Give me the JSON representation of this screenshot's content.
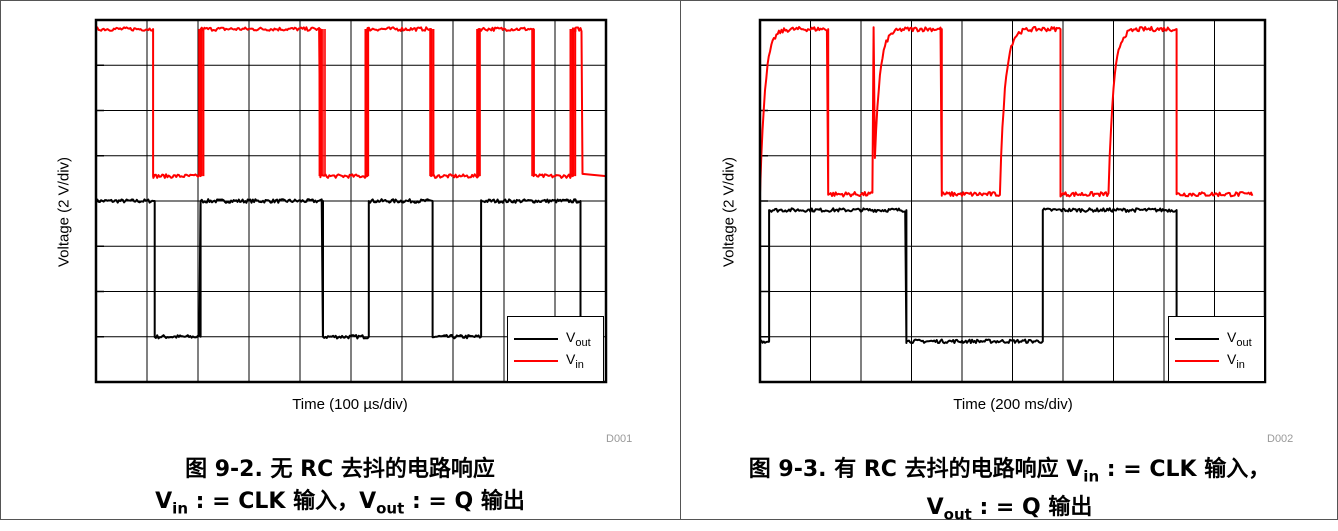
{
  "colors": {
    "vout": "#000000",
    "vin": "#ff0000",
    "grid": "#000000"
  },
  "captions": [
    {
      "line1": "图 9-2. 无 RC 去抖的电路响应",
      "vin_sym": "V",
      "vin_sub": "in",
      "vin_rest": " : = CLK 输入，",
      "vout_sym": "V",
      "vout_sub": "out",
      "vout_rest": " : = Q 输出"
    },
    {
      "line1_pre": "图 9-3. 有 RC 去抖的电路响应 ",
      "vin_sym": "V",
      "vin_sub": "in",
      "vin_rest": " : = CLK 输入，",
      "vout_sym": "V",
      "vout_sub": "out",
      "vout_rest": " : = Q 输出"
    }
  ],
  "chart_data": [
    {
      "type": "line",
      "id": "D001",
      "xlabel": "Time (100 µs/div)",
      "ylabel": "Voltage (2 V/div)",
      "x_divisions": 10,
      "y_divisions": 8,
      "ylim": [
        0,
        8
      ],
      "grid": true,
      "legend": {
        "placement": "bottom-right",
        "entries": [
          {
            "sym": "V",
            "sub": "out",
            "series": "vout"
          },
          {
            "sym": "V",
            "sub": "in",
            "series": "vin"
          }
        ]
      },
      "series": [
        {
          "name": "Vin",
          "key": "vin",
          "low": 4.55,
          "high": 7.8,
          "edges": [
            [
              1.12,
              "fall"
            ],
            [
              2.05,
              "rise"
            ],
            [
              4.4,
              "fall"
            ],
            [
              5.32,
              "rise"
            ],
            [
              6.57,
              "fall"
            ],
            [
              7.5,
              "rise"
            ],
            [
              8.58,
              "fall"
            ],
            [
              9.35,
              "rise"
            ]
          ],
          "bounce": [
            {
              "at": 2.05,
              "times": [
                2.02,
                2.05,
                2.08,
                2.11
              ],
              "span": 0.12
            },
            {
              "at": 4.4,
              "times": [
                4.38,
                4.42,
                4.45,
                4.49
              ],
              "span": 0.12
            },
            {
              "at": 5.32,
              "times": [
                5.28,
                5.31,
                5.34
              ],
              "span": 0.1
            },
            {
              "at": 6.57,
              "times": [
                6.55,
                6.59,
                6.62
              ],
              "span": 0.1
            },
            {
              "at": 7.5,
              "times": [
                7.47,
                7.5,
                7.53
              ],
              "span": 0.1
            },
            {
              "at": 8.58,
              "times": [
                8.55,
                8.59
              ],
              "span": 0.08
            },
            {
              "at": 9.35,
              "times": [
                9.3,
                9.33,
                9.37,
                9.4
              ],
              "span": 0.12
            }
          ],
          "noise": 0.04,
          "tail": [
            [
              9.4,
              7.75
            ],
            [
              9.52,
              7.75
            ],
            [
              9.54,
              4.6
            ],
            [
              10.0,
              4.55
            ]
          ],
          "x_end": 9.52
        },
        {
          "name": "Vout",
          "key": "vout",
          "low": 1.0,
          "high": 4.0,
          "edges": [
            [
              1.15,
              "fall"
            ],
            [
              2.05,
              "rise"
            ],
            [
              4.45,
              "fall"
            ],
            [
              5.35,
              "rise"
            ],
            [
              6.6,
              "fall"
            ],
            [
              7.55,
              "rise"
            ],
            [
              9.5,
              "fall"
            ]
          ],
          "noise": 0.04,
          "x_end": 9.5
        }
      ]
    },
    {
      "type": "line",
      "id": "D002",
      "xlabel": "Time (200 ms/div)",
      "ylabel": "Voltage (2 V/div)",
      "x_divisions": 10,
      "y_divisions": 8,
      "ylim": [
        0,
        8
      ],
      "grid": true,
      "legend": {
        "placement": "bottom-right",
        "entries": [
          {
            "sym": "V",
            "sub": "out",
            "series": "vout"
          },
          {
            "sym": "V",
            "sub": "in",
            "series": "vin"
          }
        ]
      },
      "series": [
        {
          "name": "Vin",
          "key": "vin",
          "low": 4.15,
          "high": 7.8,
          "rc_rise_tau": 0.1,
          "edges": [
            [
              0.0,
              "rise"
            ],
            [
              1.35,
              "fall"
            ],
            [
              2.25,
              "rise"
            ],
            [
              3.6,
              "fall"
            ],
            [
              4.75,
              "rise"
            ],
            [
              5.95,
              "fall"
            ],
            [
              6.9,
              "rise"
            ],
            [
              8.25,
              "fall"
            ]
          ],
          "noise": 0.05,
          "x_end": 9.75
        },
        {
          "name": "Vout",
          "key": "vout",
          "low": 0.9,
          "high": 3.8,
          "edges": [
            [
              0.0,
              "low"
            ],
            [
              0.18,
              "rise"
            ],
            [
              2.9,
              "fall"
            ],
            [
              5.6,
              "rise"
            ],
            [
              8.25,
              "fall"
            ]
          ],
          "noise": 0.04,
          "x_end": 8.25
        }
      ]
    }
  ]
}
